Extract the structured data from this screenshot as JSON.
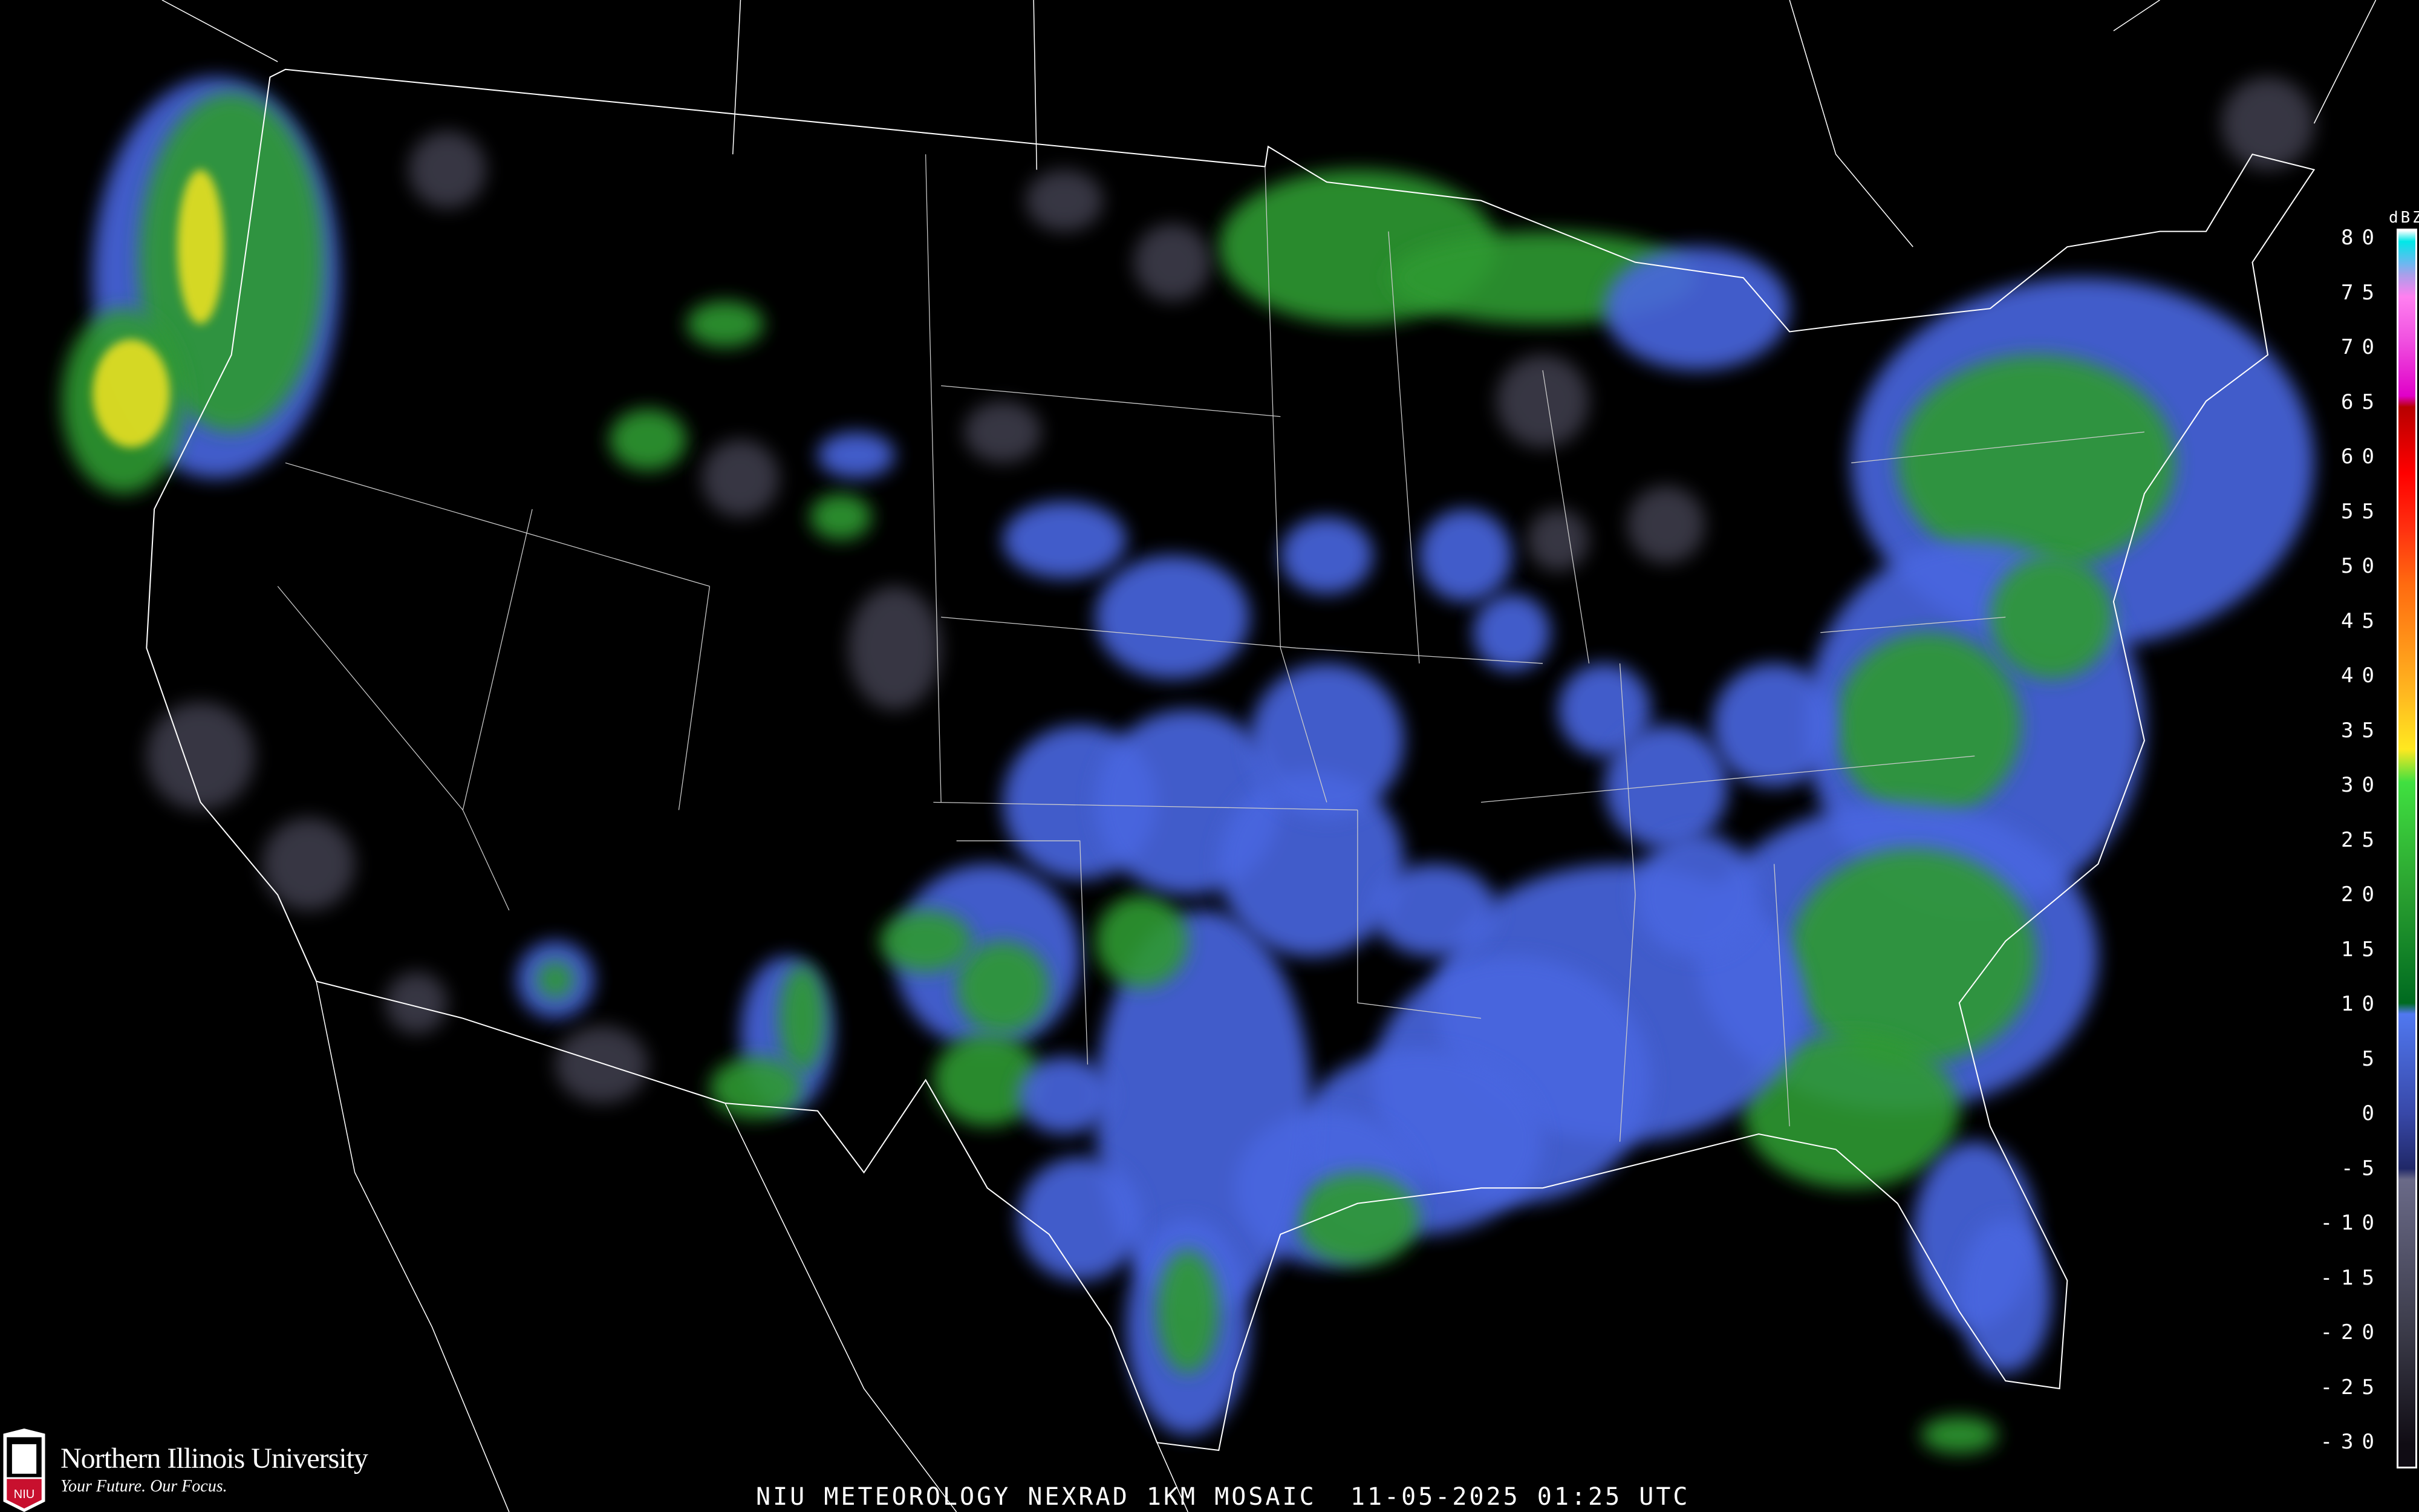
{
  "title": "NIU METEOROLOGY NEXRAD 1KM MOSAIC  11-05-2025 01:25 UTC",
  "branding": {
    "name": "Northern Illinois University",
    "tagline": "Your Future. Our Focus.",
    "shield_text": "NIU"
  },
  "legend": {
    "unit": "dBZ",
    "labels": [
      "80",
      "75",
      "70",
      "65",
      "60",
      "55",
      "50",
      "45",
      "40",
      "35",
      "30",
      "25",
      "20",
      "15",
      "10",
      "5",
      "0",
      "-5",
      "-10",
      "-15",
      "-20",
      "-25",
      "-30"
    ],
    "color_stops": [
      {
        "dbz": 80,
        "color": "#ffffff"
      },
      {
        "dbz": 79,
        "color": "#00e8e8"
      },
      {
        "dbz": 77,
        "color": "#6cb8f0"
      },
      {
        "dbz": 76,
        "color": "#a8a0ea"
      },
      {
        "dbz": 74,
        "color": "#ff80f0"
      },
      {
        "dbz": 70,
        "color": "#f050e0"
      },
      {
        "dbz": 65,
        "color": "#e000c8"
      },
      {
        "dbz": 64,
        "color": "#b80000"
      },
      {
        "dbz": 58,
        "color": "#ff0000"
      },
      {
        "dbz": 53,
        "color": "#ff3010"
      },
      {
        "dbz": 48,
        "color": "#ff6a10"
      },
      {
        "dbz": 43,
        "color": "#ff9018"
      },
      {
        "dbz": 38,
        "color": "#ffb820"
      },
      {
        "dbz": 33,
        "color": "#ffe820"
      },
      {
        "dbz": 30,
        "color": "#40e040"
      },
      {
        "dbz": 20,
        "color": "#2aa030"
      },
      {
        "dbz": 10,
        "color": "#006a20"
      },
      {
        "dbz": 9,
        "color": "#5078f0"
      },
      {
        "dbz": 0,
        "color": "#3848a8"
      },
      {
        "dbz": -5,
        "color": "#202868"
      },
      {
        "dbz": -6,
        "color": "#6a6a88"
      },
      {
        "dbz": -20,
        "color": "#3a3a48"
      },
      {
        "dbz": -30,
        "color": "#100c14"
      }
    ]
  },
  "radar_colors": {
    "light": "#4a66e0",
    "moderate": "#2e9a30",
    "heavy": "#e8e020",
    "intense": "#e84010",
    "clutter": "#5c5a70"
  }
}
